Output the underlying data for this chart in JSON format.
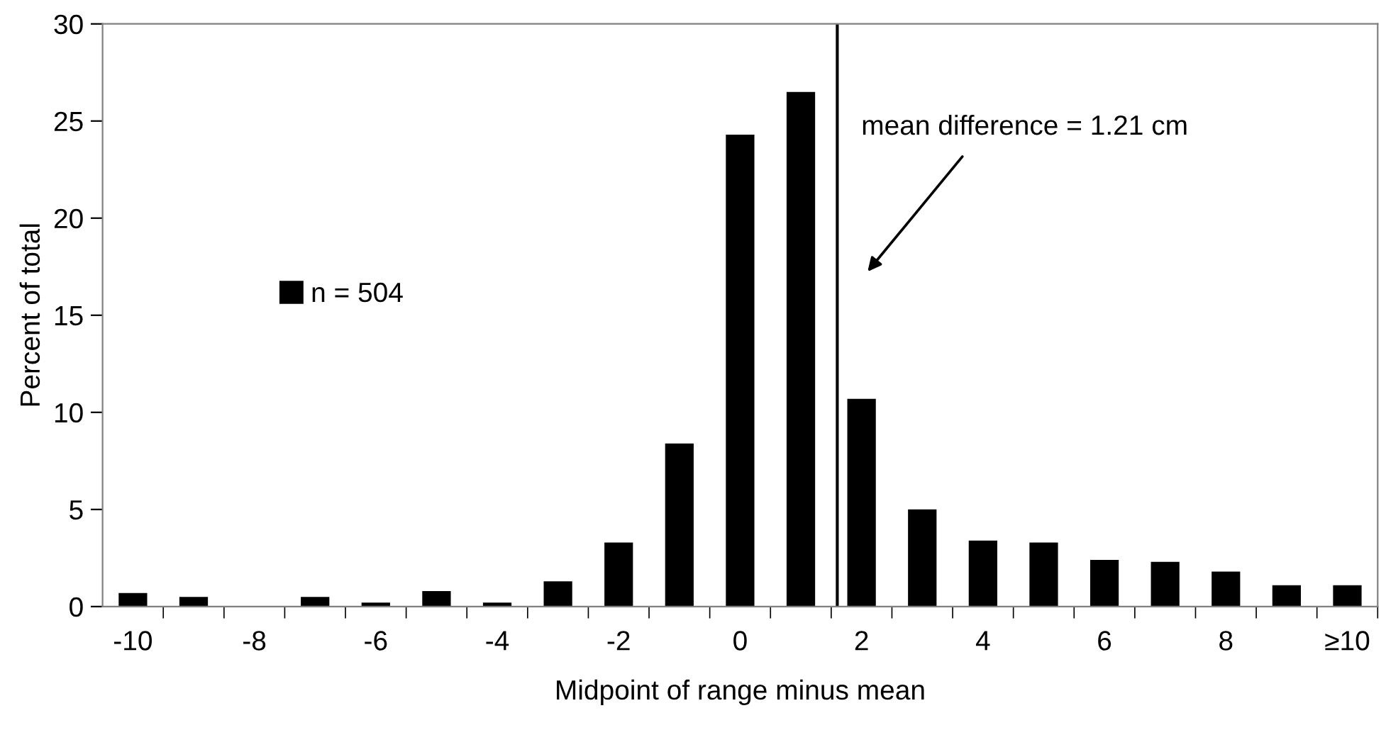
{
  "chart_data": {
    "type": "bar",
    "xlabel": "Midpoint of range minus mean",
    "ylabel": "Percent of total",
    "x": [
      -10,
      -9,
      -8,
      -7,
      -6,
      -5,
      -4,
      -3,
      -2,
      -1,
      0,
      1,
      2,
      3,
      4,
      5,
      6,
      7,
      8,
      9,
      10
    ],
    "series": [
      {
        "name": "n = 504",
        "color": "#000000",
        "values": [
          0.7,
          0.5,
          0,
          0.5,
          0.2,
          0.8,
          0.2,
          1.3,
          3.3,
          8.4,
          24.3,
          26.5,
          10.7,
          5.0,
          3.4,
          3.3,
          2.4,
          2.3,
          1.8,
          1.1,
          1.1
        ]
      }
    ],
    "xlim": [
      -10.5,
      10.5
    ],
    "xticks": [
      {
        "value": -10,
        "label": "-10"
      },
      {
        "value": -8,
        "label": "-8"
      },
      {
        "value": -6,
        "label": "-6"
      },
      {
        "value": -4,
        "label": "-4"
      },
      {
        "value": -2,
        "label": "-2"
      },
      0,
      2,
      4,
      6,
      8,
      {
        "value": 10,
        "label": "≥10"
      },
      {
        "value": -9.5,
        "label": null
      },
      {
        "value": -8.5,
        "label": null
      },
      {
        "value": -7.5,
        "label": null
      },
      {
        "value": -6.5,
        "label": null
      },
      {
        "value": -5.5,
        "label": null
      },
      {
        "value": -4.5,
        "label": null
      },
      {
        "value": -3.5,
        "label": null
      },
      {
        "value": -2.5,
        "label": null
      },
      {
        "value": -1.5,
        "label": null
      },
      {
        "value": -0.5,
        "label": null
      },
      {
        "value": 0.5,
        "label": null
      },
      {
        "value": 1.5,
        "label": null
      },
      {
        "value": 2.5,
        "label": null
      },
      {
        "value": 3.5,
        "label": null
      },
      {
        "value": 4.5,
        "label": null
      },
      {
        "value": 5.5,
        "label": null
      },
      {
        "value": 6.5,
        "label": null
      },
      {
        "value": 7.5,
        "label": null
      },
      {
        "value": 8.5,
        "label": null
      },
      {
        "value": 9.5,
        "label": null
      },
      {
        "value": 10.5,
        "label": null
      }
    ],
    "ylim": [
      0,
      30
    ],
    "yticks": [
      0,
      5,
      10,
      15,
      20,
      25,
      30
    ],
    "ref_lines": [
      {
        "axis": "x",
        "value": 1.6,
        "color": "#000000"
      }
    ],
    "annotations": [
      "mean difference = 1.21 cm"
    ],
    "grid": false,
    "legend": "left"
  }
}
